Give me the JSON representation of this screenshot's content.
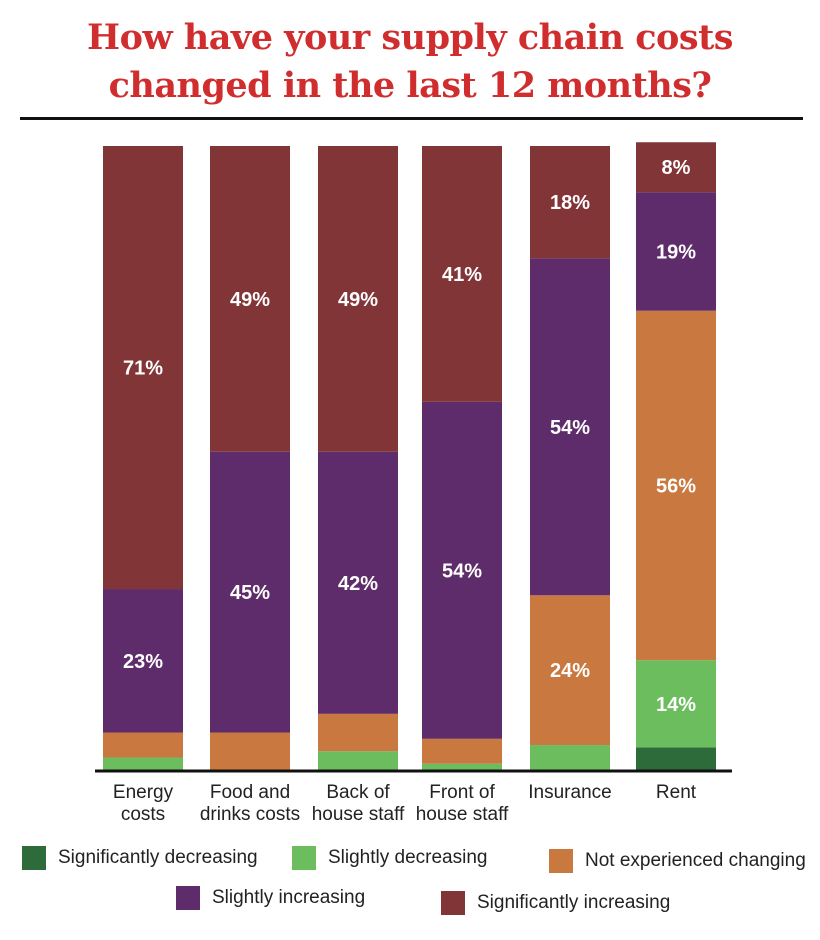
{
  "title_line1": "How have your supply chain costs",
  "title_line2": "changed in the last 12 months?",
  "chart_data": {
    "type": "bar",
    "stacked": true,
    "ylim": [
      0,
      100
    ],
    "categories": [
      [
        "Energy",
        "costs"
      ],
      [
        "Food and",
        "drinks costs"
      ],
      [
        "Back of",
        "house staff"
      ],
      [
        "Front of",
        "house staff"
      ],
      [
        "Insurance"
      ],
      [
        "Rent"
      ]
    ],
    "series": [
      {
        "name": "Significantly decreasing",
        "color": "#2e6b3a",
        "values": [
          0,
          0,
          0,
          0,
          0,
          3.6
        ]
      },
      {
        "name": "Slightly decreasing",
        "color": "#6cbd5e",
        "values": [
          2,
          0,
          3,
          1,
          4,
          14
        ]
      },
      {
        "name": "Not experienced changing",
        "color": "#c97840",
        "values": [
          4,
          6,
          6,
          4,
          24,
          56
        ]
      },
      {
        "name": "Slightly increasing",
        "color": "#5e2c6a",
        "values": [
          23,
          45,
          42,
          54,
          54,
          19
        ]
      },
      {
        "name": "Significantly increasing",
        "color": "#823536",
        "values": [
          71,
          49,
          49,
          41,
          18,
          8
        ]
      }
    ],
    "data_labels": [
      [
        null,
        null,
        null,
        "23%",
        "71%"
      ],
      [
        null,
        null,
        null,
        "45%",
        "49%"
      ],
      [
        null,
        null,
        null,
        "42%",
        "49%"
      ],
      [
        null,
        null,
        null,
        "54%",
        "41%"
      ],
      [
        null,
        null,
        "24%",
        "54%",
        "18%"
      ],
      [
        null,
        "14%",
        "56%",
        "19%",
        "8%"
      ]
    ]
  }
}
